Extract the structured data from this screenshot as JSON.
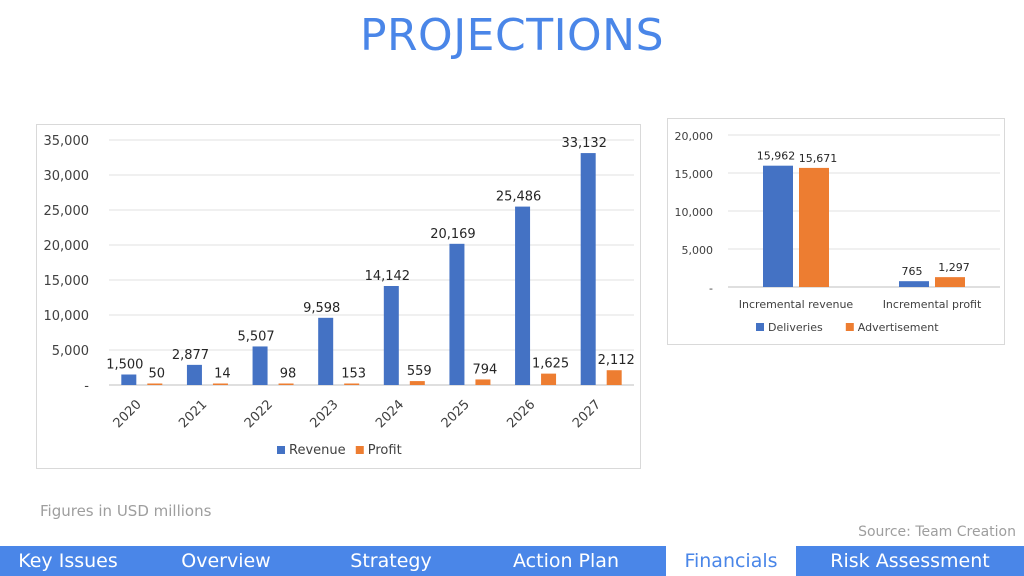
{
  "page": {
    "title": "PROJECTIONS",
    "footnote": "Figures in USD millions",
    "source": "Source: Team Creation"
  },
  "nav": {
    "tabs": [
      {
        "label": "Key Issues",
        "active": false
      },
      {
        "label": "Overview",
        "active": false
      },
      {
        "label": "Strategy",
        "active": false
      },
      {
        "label": "Action Plan",
        "active": false
      },
      {
        "label": "Financials",
        "active": true
      },
      {
        "label": "Risk Assessment",
        "active": false
      }
    ]
  },
  "colors": {
    "blue": "#4472c4",
    "orange": "#ed7d31",
    "accent": "#4a86e8"
  },
  "chart_data": [
    {
      "type": "bar",
      "categories": [
        "2020",
        "2021",
        "2022",
        "2023",
        "2024",
        "2025",
        "2026",
        "2027"
      ],
      "series": [
        {
          "name": "Revenue",
          "values": [
            1500,
            2877,
            5507,
            9598,
            14142,
            20169,
            25486,
            33132
          ],
          "labels": [
            "1,500",
            "2,877",
            "5,507",
            "9,598",
            "14,142",
            "20,169",
            "25,486",
            "33,132"
          ],
          "color": "#4472c4"
        },
        {
          "name": "Profit",
          "values": [
            50,
            14,
            98,
            153,
            559,
            794,
            1625,
            2112
          ],
          "labels": [
            "50",
            "14",
            "98",
            "153",
            "559",
            "794",
            "1,625",
            "2,112"
          ],
          "color": "#ed7d31"
        }
      ],
      "ylim": [
        0,
        35000
      ],
      "yticks": [
        "-",
        "5,000",
        "10,000",
        "15,000",
        "20,000",
        "25,000",
        "30,000",
        "35,000"
      ],
      "grid": true,
      "legend": "bottom"
    },
    {
      "type": "bar",
      "categories": [
        "Incremental revenue",
        "Incremental profit"
      ],
      "series": [
        {
          "name": "Deliveries",
          "values": [
            15962,
            765
          ],
          "labels": [
            "15,962",
            "765"
          ],
          "color": "#4472c4"
        },
        {
          "name": "Advertisement",
          "values": [
            15671,
            1297
          ],
          "labels": [
            "15,671",
            "1,297"
          ],
          "color": "#ed7d31"
        }
      ],
      "ylim": [
        0,
        20000
      ],
      "yticks": [
        "-",
        "5,000",
        "10,000",
        "15,000",
        "20,000"
      ],
      "grid": true,
      "legend": "bottom"
    }
  ]
}
